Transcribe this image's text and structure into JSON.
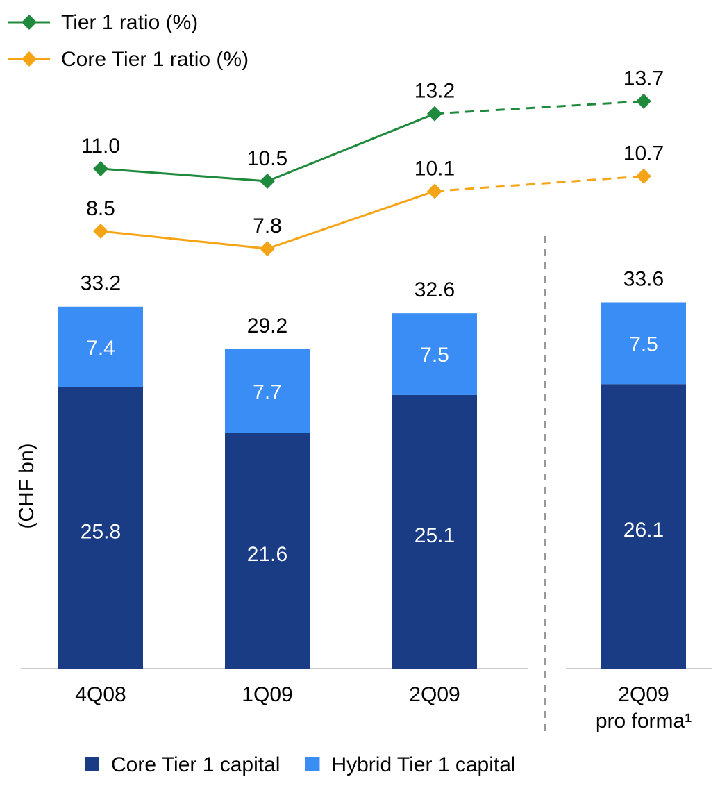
{
  "chart_data": {
    "type": "bar",
    "stacked": true,
    "categories": [
      "4Q08",
      "1Q09",
      "2Q09",
      "2Q09\npro forma¹"
    ],
    "y_label": "(CHF bn)",
    "ylim": [
      0,
      40
    ],
    "y2lim": [
      -9,
      15
    ],
    "series": [
      {
        "name": "Core Tier 1 capital",
        "color": "#1a3c85",
        "values": [
          25.8,
          21.6,
          25.1,
          26.1
        ]
      },
      {
        "name": "Hybrid Tier 1 capital",
        "color": "#3a8df5",
        "values": [
          7.4,
          7.7,
          7.5,
          7.5
        ]
      },
      {
        "name": "Tier 1 ratio (%)",
        "type": "line",
        "axis": "y2",
        "color": "#1f8a3c",
        "values": [
          11.0,
          10.5,
          13.2,
          13.7
        ],
        "value_labels": [
          "11.0",
          "10.5",
          "13.2",
          "13.7"
        ]
      },
      {
        "name": "Core Tier 1 ratio (%)",
        "type": "line",
        "axis": "y2",
        "color": "#f5a415",
        "values": [
          8.5,
          7.8,
          10.1,
          10.7
        ]
      }
    ],
    "totals": [
      33.2,
      29.2,
      32.6,
      33.6
    ]
  }
}
